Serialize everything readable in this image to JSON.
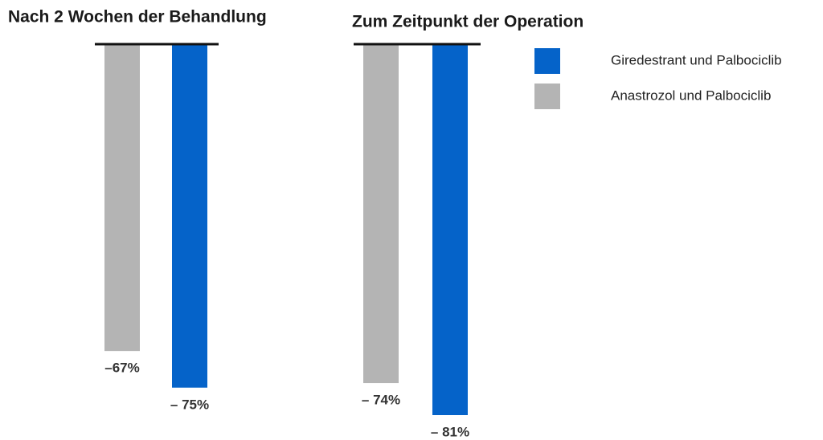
{
  "chart_data": {
    "type": "bar",
    "categories": [
      "Nach 2 Wochen der Behandlung",
      "Zum Zeitpunkt der Operation"
    ],
    "series": [
      {
        "name": "Giredestrant und Palbociclib",
        "color": "#0563c9",
        "values": [
          -75,
          -81
        ],
        "value_labels": [
          "– 75%",
          "– 81%"
        ]
      },
      {
        "name": "Anastrozol und Palbociclib",
        "color": "#b4b4b4",
        "values": [
          -67,
          -74
        ],
        "value_labels": [
          "–67%",
          "– 74%"
        ]
      }
    ]
  }
}
